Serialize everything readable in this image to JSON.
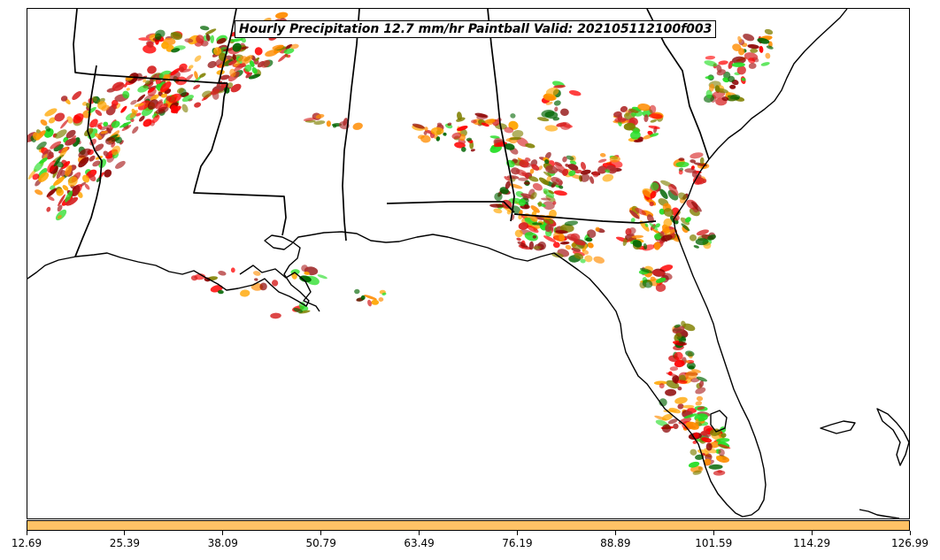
{
  "title": "Hourly Precipitation 12.7 mm/hr Paintball Valid: 202105112100f003",
  "colorbar": {
    "color": "#ffc266",
    "tick_labels": [
      "12.69",
      "25.39",
      "38.09",
      "50.79",
      "63.49",
      "76.19",
      "88.89",
      "101.59",
      "114.29",
      "126.99"
    ]
  },
  "member_colors": [
    "#ff8c00",
    "#ff0000",
    "#d62222",
    "#8b0000",
    "#22dd22",
    "#006400",
    "#808000",
    "#ffa500",
    "#b03030"
  ],
  "map": {
    "region": "Southeastern United States",
    "features": [
      "coastline",
      "state-borders"
    ]
  }
}
